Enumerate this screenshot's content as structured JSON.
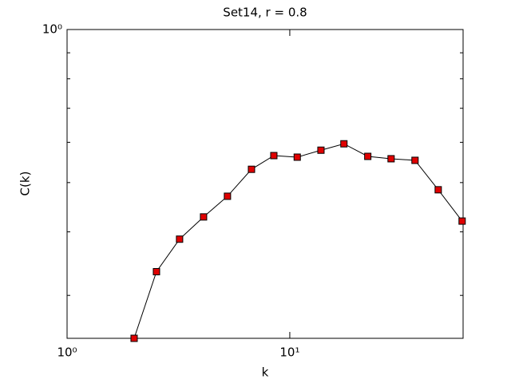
{
  "chart_data": {
    "type": "line",
    "title": "Set14, r = 0.8",
    "xlabel": "k",
    "ylabel": "C(k)",
    "xscale": "log",
    "yscale": "log",
    "grid": false,
    "xlim": [
      1,
      60
    ],
    "ylim": [
      0.247,
      1
    ],
    "xticks": [
      {
        "value": 1,
        "label": "10⁰"
      },
      {
        "value": 10,
        "label": "10¹"
      }
    ],
    "yticks": [
      {
        "value": 1,
        "label": "10⁰"
      }
    ],
    "yminorticks": [
      0.3,
      0.4,
      0.5,
      0.6,
      0.7,
      0.8,
      0.9
    ],
    "series": [
      {
        "color": "#000000",
        "marker_color": "#e00000",
        "x": [
          2,
          2.52,
          3.2,
          4.1,
          5.25,
          6.73,
          8.48,
          10.8,
          13.8,
          17.5,
          22.4,
          28.5,
          36.5,
          46.4,
          59.4
        ],
        "values": [
          0.247,
          0.334,
          0.387,
          0.428,
          0.47,
          0.531,
          0.565,
          0.561,
          0.579,
          0.596,
          0.563,
          0.557,
          0.553,
          0.484,
          0.42
        ]
      }
    ]
  }
}
